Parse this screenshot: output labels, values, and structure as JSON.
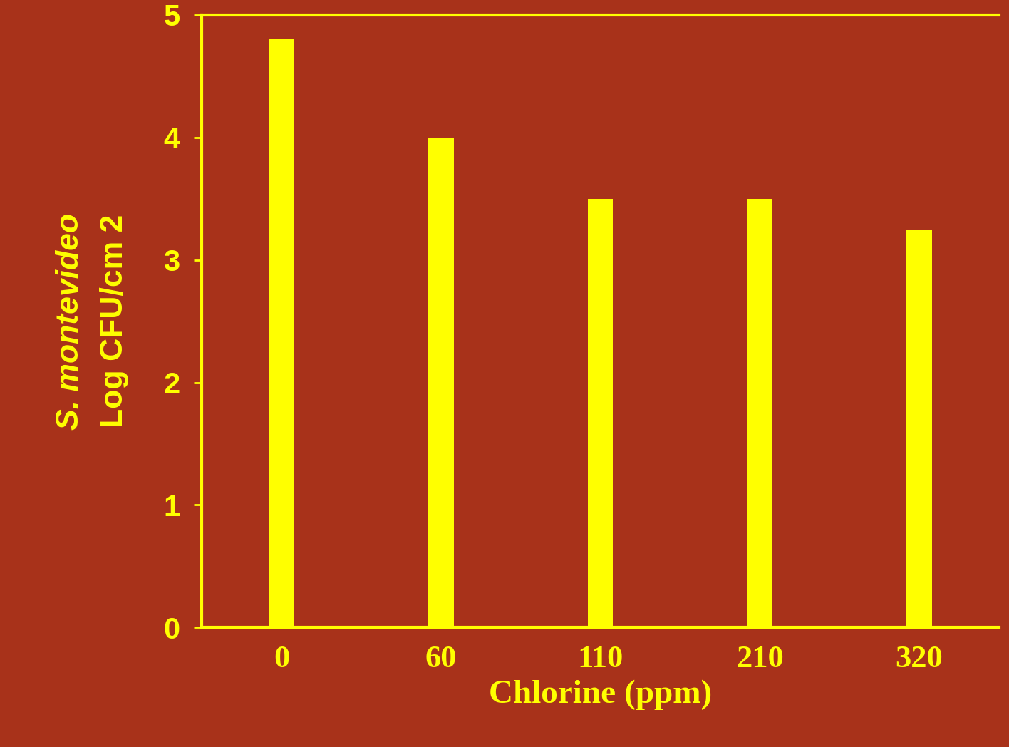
{
  "chart_data": {
    "type": "bar",
    "categories": [
      "0",
      "60",
      "110",
      "210",
      "320"
    ],
    "values": [
      4.8,
      4.0,
      3.5,
      3.5,
      3.25
    ],
    "color": "#ffff00",
    "x_label": "Chlorine (ppm)",
    "y_label": [
      "S. montevideo",
      "Log CFU/cm 2"
    ],
    "ylim": [
      0,
      5
    ],
    "yticks": [
      0,
      1,
      2,
      3,
      4,
      5
    ],
    "grid": false
  }
}
